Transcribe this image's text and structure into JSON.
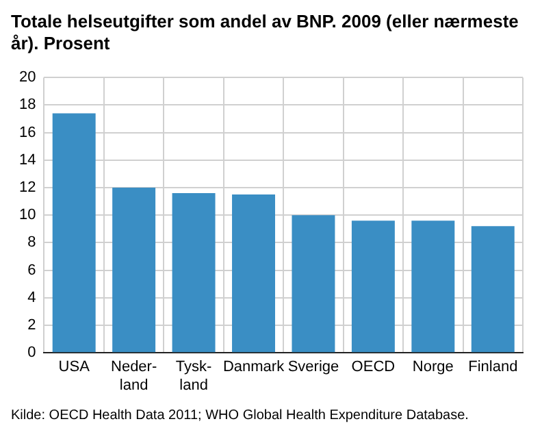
{
  "chart_data": {
    "type": "bar",
    "title": "Totale helseutgifter som andel av BNP. 2009 (eller nærmeste år). Prosent",
    "categories": [
      "USA",
      "Neder-\nland",
      "Tysk-\nland",
      "Danmark",
      "Sverige",
      "OECD",
      "Norge",
      "Finland"
    ],
    "values": [
      17.4,
      12.0,
      11.6,
      11.5,
      10.0,
      9.6,
      9.6,
      9.2
    ],
    "color": "#3a8ec4",
    "ylim": [
      0,
      20
    ],
    "yticks": [
      0,
      2,
      4,
      6,
      8,
      10,
      12,
      14,
      16,
      18,
      20
    ],
    "grid": true,
    "annotations": [
      "Kilde: OECD Health Data 2011; WHO Global Health Expenditure Database."
    ]
  }
}
